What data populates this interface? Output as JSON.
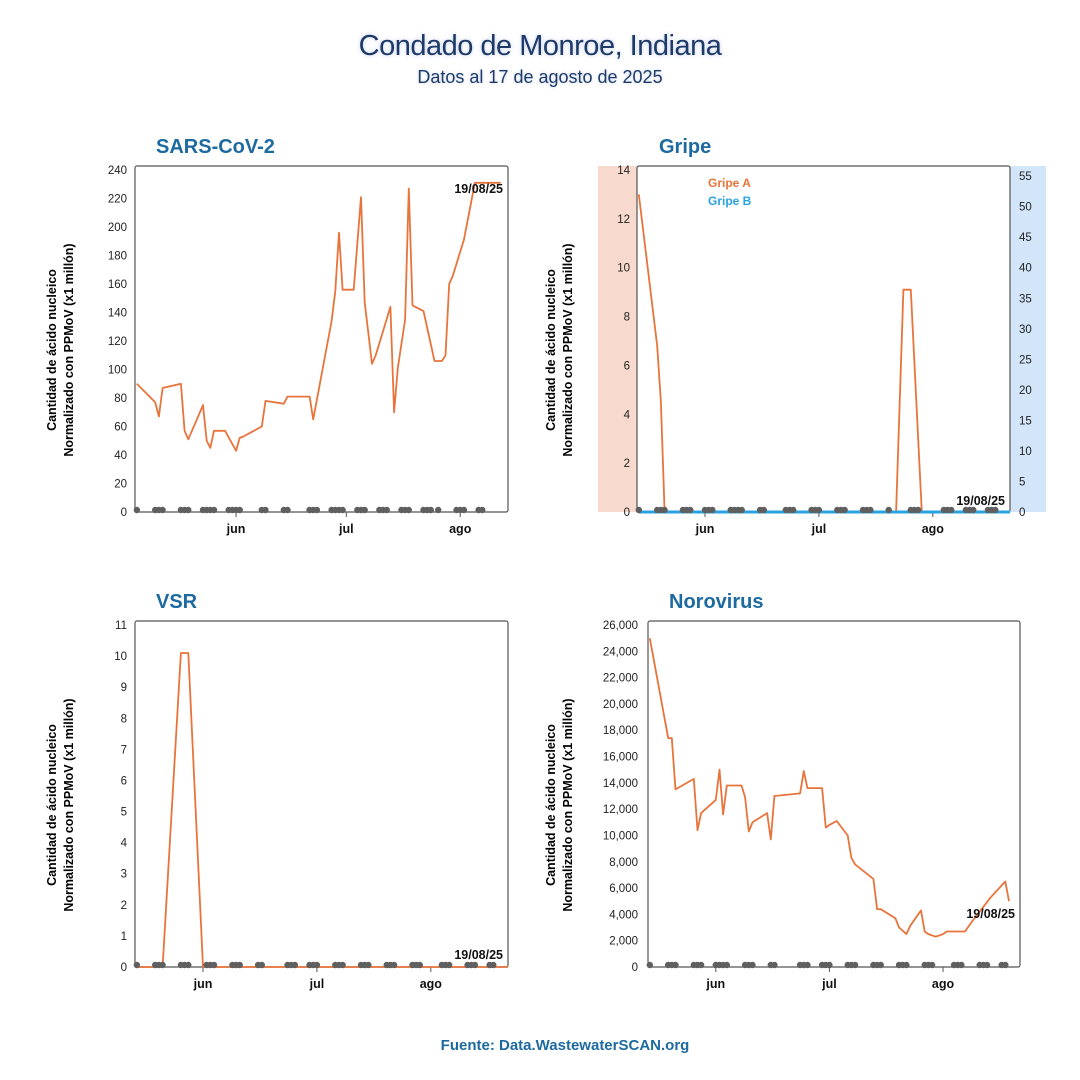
{
  "header": {
    "title": "Condado de Monroe, Indiana",
    "subtitle": "Datos al 17 de agosto de 2025"
  },
  "footer": {
    "source": "Fuente: Data.WastewaterSCAN.org"
  },
  "colors": {
    "line": "#e8743b",
    "gripe_b": "#29a3e0",
    "title": "#1f3a68",
    "panel_title": "#1d6aa0",
    "dots": "#5f5f5f",
    "left_band": "#f8d9cd",
    "right_band": "#d3e6f9"
  },
  "panels": {
    "sars": {
      "title": "SARS-CoV-2",
      "ylabel_1": "Cantidad de ácido nucleico",
      "ylabel_2": "Normalizado con PPMoV (x1 millón)"
    },
    "gripe": {
      "title": "Gripe",
      "ylabel_1": "Cantidad de ácido nucleico",
      "ylabel_2": "Normalizado con PPMoV (x1 millón)"
    },
    "vsr": {
      "title": "VSR",
      "ylabel_1": "Cantidad de ácido nucleico",
      "ylabel_2": "Normalizado con PPMoV (x1 millón)"
    },
    "noro": {
      "title": "Norovirus",
      "ylabel_1": "Cantidad de ácido nucleico",
      "ylabel_2": "Normalizado con PPMoV (x1 millón)"
    }
  },
  "chart_data": [
    {
      "id": "sars",
      "type": "line",
      "title": "SARS-CoV-2",
      "x_tick_labels": [
        "jun",
        "jul",
        "ago"
      ],
      "x_tick_days": [
        27,
        57,
        88
      ],
      "xlim": [
        -0.5,
        101
      ],
      "ylim": [
        0,
        240
      ],
      "y_ticks": [
        0,
        20,
        40,
        60,
        80,
        100,
        120,
        140,
        160,
        180,
        200,
        220,
        240
      ],
      "annotation": "19/08/25",
      "series": [
        {
          "x": [
            0,
            5,
            6,
            7,
            12,
            13,
            14,
            18,
            19,
            20,
            21,
            23,
            24,
            27,
            28,
            29,
            34,
            35,
            40,
            41,
            47,
            48,
            53,
            54,
            55,
            56,
            59,
            61,
            62,
            64,
            65,
            67,
            69,
            70,
            71,
            73,
            74,
            75,
            78,
            81,
            82,
            83,
            84,
            85,
            86,
            89,
            92,
            95,
            96,
            97,
            98,
            99
          ],
          "y": [
            90,
            77,
            67,
            87,
            90,
            57,
            51,
            75,
            50,
            45,
            57,
            57,
            57,
            43,
            52,
            53,
            60,
            78,
            76,
            81,
            81,
            65,
            134,
            155,
            196,
            156,
            156,
            221,
            147,
            104,
            110,
            127,
            144,
            70,
            101,
            135,
            227,
            145,
            141,
            106,
            106,
            106,
            110,
            160,
            166,
            191,
            231,
            231,
            231,
            231,
            231,
            231
          ]
        }
      ],
      "sample_days": [
        0,
        5,
        6,
        7,
        12,
        13,
        14,
        18,
        19,
        20,
        21,
        25,
        26,
        27,
        28,
        34,
        35,
        40,
        41,
        47,
        48,
        49,
        53,
        54,
        55,
        56,
        60,
        61,
        62,
        66,
        67,
        68,
        72,
        73,
        74,
        78,
        79,
        80,
        82,
        87,
        88,
        89,
        93,
        94
      ]
    },
    {
      "id": "gripe",
      "type": "line",
      "title": "Gripe",
      "legend": [
        "Gripe A",
        "Gripe B"
      ],
      "x_tick_labels": [
        "jun",
        "jul",
        "ago"
      ],
      "x_tick_days": [
        18,
        49,
        80
      ],
      "xlim": [
        -0.5,
        101
      ],
      "ylim_left": [
        0,
        14
      ],
      "y_ticks_left": [
        0,
        2,
        4,
        6,
        8,
        10,
        12,
        14
      ],
      "ylim_right": [
        0,
        56
      ],
      "y_ticks_right": [
        0,
        5,
        10,
        15,
        20,
        25,
        30,
        35,
        40,
        45,
        50,
        55
      ],
      "annotation": "19/08/25",
      "series": [
        {
          "name": "Gripe A",
          "axis": "left",
          "x": [
            0,
            5,
            6,
            7,
            70,
            72,
            73,
            74,
            77,
            101
          ],
          "y": [
            13,
            6.8,
            4.5,
            0,
            0,
            9.1,
            9.1,
            9.1,
            0,
            0
          ]
        },
        {
          "name": "Gripe B",
          "axis": "right",
          "x": [
            0,
            101
          ],
          "y": [
            0,
            0
          ]
        }
      ],
      "sample_days": [
        0,
        5,
        6,
        7,
        12,
        13,
        14,
        18,
        19,
        20,
        25,
        26,
        27,
        28,
        33,
        34,
        40,
        41,
        42,
        47,
        48,
        49,
        54,
        55,
        56,
        61,
        62,
        63,
        68,
        74,
        75,
        76,
        83,
        84,
        85,
        89,
        90,
        91,
        95,
        96,
        97
      ]
    },
    {
      "id": "vsr",
      "type": "line",
      "title": "VSR",
      "x_tick_labels": [
        "jun",
        "jul",
        "ago"
      ],
      "x_tick_days": [
        18,
        49,
        80
      ],
      "xlim": [
        -0.5,
        101
      ],
      "ylim": [
        0,
        11
      ],
      "y_ticks": [
        0,
        1,
        2,
        3,
        4,
        5,
        6,
        7,
        8,
        9,
        10,
        11
      ],
      "annotation": "19/08/25",
      "series": [
        {
          "x": [
            0,
            7,
            12,
            14,
            18,
            101
          ],
          "y": [
            0,
            0,
            10.1,
            10.1,
            0,
            0
          ]
        }
      ],
      "sample_days": [
        0,
        5,
        6,
        7,
        12,
        13,
        14,
        19,
        20,
        21,
        26,
        27,
        28,
        33,
        34,
        41,
        42,
        43,
        47,
        48,
        49,
        54,
        55,
        56,
        61,
        62,
        63,
        68,
        69,
        70,
        75,
        76,
        77,
        83,
        84,
        85,
        90,
        91,
        92,
        96,
        97
      ]
    },
    {
      "id": "noro",
      "type": "line",
      "title": "Norovirus",
      "x_tick_labels": [
        "jun",
        "jul",
        "ago"
      ],
      "x_tick_days": [
        18,
        49,
        80
      ],
      "xlim": [
        -0.5,
        101
      ],
      "ylim": [
        0,
        26000
      ],
      "y_ticks": [
        0,
        2000,
        4000,
        6000,
        8000,
        10000,
        12000,
        14000,
        16000,
        18000,
        20000,
        22000,
        24000,
        26000
      ],
      "y_tick_labels": [
        "0",
        "2,000",
        "4,000",
        "6,000",
        "8,000",
        "10,000",
        "12,000",
        "14,000",
        "16,000",
        "18,000",
        "20,000",
        "22,000",
        "24,000",
        "26,000"
      ],
      "annotation": "19/08/25",
      "series": [
        {
          "x": [
            0,
            5,
            6,
            7,
            12,
            13,
            14,
            18,
            19,
            20,
            21,
            25,
            26,
            27,
            28,
            32,
            33,
            34,
            41,
            42,
            43,
            47,
            48,
            49,
            51,
            54,
            55,
            56,
            61,
            62,
            63,
            67,
            68,
            70,
            71,
            74,
            75,
            76,
            78,
            80,
            81,
            83,
            86,
            88,
            93,
            97,
            98
          ],
          "y": [
            25000,
            17400,
            17400,
            13500,
            14300,
            10400,
            11700,
            12700,
            15000,
            11600,
            13800,
            13800,
            12900,
            10300,
            11000,
            11700,
            9700,
            13000,
            13200,
            14900,
            13600,
            13600,
            10600,
            10800,
            11100,
            10000,
            8300,
            7800,
            6700,
            4400,
            4400,
            3700,
            3000,
            2500,
            3100,
            4300,
            2700,
            2500,
            2300,
            2500,
            2700,
            2700,
            2700,
            3500,
            5300,
            6500,
            5000
          ]
        }
      ],
      "sample_days": [
        0,
        5,
        6,
        7,
        12,
        13,
        14,
        18,
        19,
        20,
        21,
        26,
        27,
        28,
        33,
        34,
        41,
        42,
        43,
        47,
        48,
        49,
        54,
        55,
        56,
        61,
        62,
        63,
        68,
        69,
        70,
        75,
        76,
        77,
        83,
        84,
        85,
        90,
        91,
        92,
        96,
        97
      ]
    }
  ]
}
